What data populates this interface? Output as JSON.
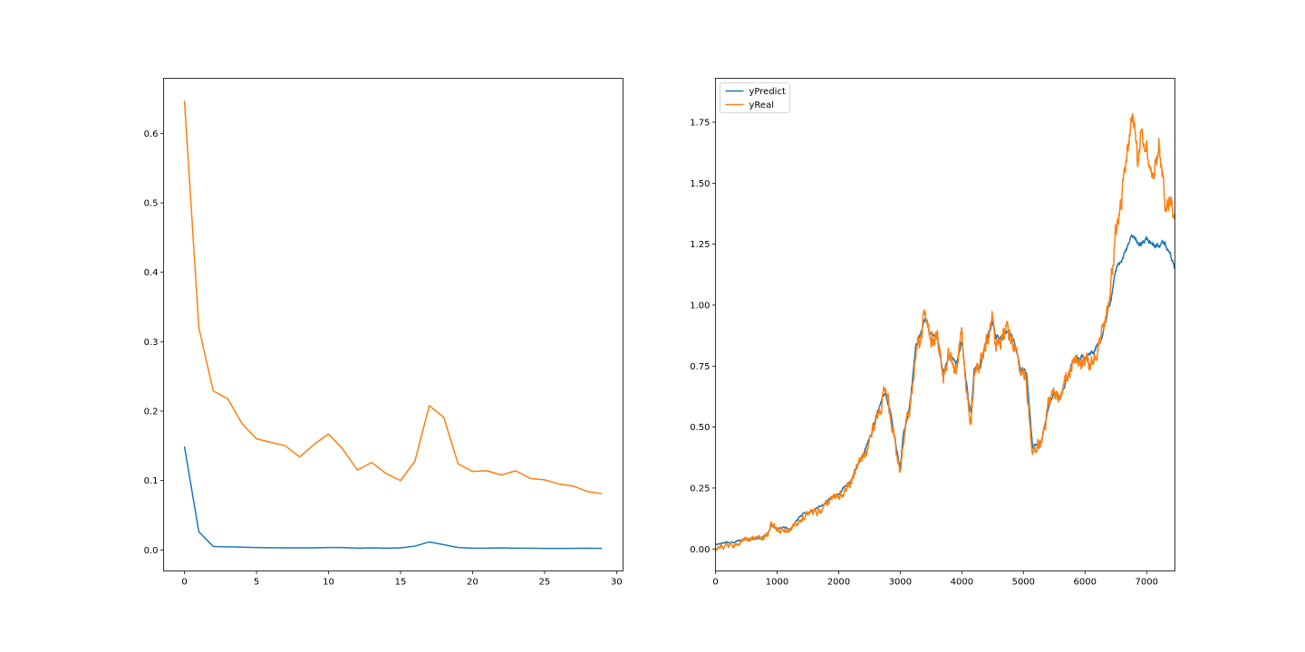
{
  "colors": {
    "series_blue": "#1f77b4",
    "series_orange": "#ff7f0e",
    "axes": "#000000",
    "background": "#ffffff"
  },
  "chart_data": [
    {
      "type": "line",
      "xlim": [
        -1.45,
        30.45
      ],
      "ylim": [
        -0.0303,
        0.6794
      ],
      "xticks": [
        0,
        5,
        10,
        15,
        20,
        25,
        30
      ],
      "yticks": [
        0.0,
        0.1,
        0.2,
        0.3,
        0.4,
        0.5,
        0.6
      ],
      "xtick_labels": [
        "0",
        "5",
        "10",
        "15",
        "20",
        "25",
        "30"
      ],
      "ytick_labels": [
        "0.0",
        "0.1",
        "0.2",
        "0.3",
        "0.4",
        "0.5",
        "0.6"
      ],
      "grid": false,
      "legend": false,
      "x": [
        0,
        1,
        2,
        3,
        4,
        5,
        6,
        7,
        8,
        9,
        10,
        11,
        12,
        13,
        14,
        15,
        16,
        17,
        18,
        19,
        20,
        21,
        22,
        23,
        24,
        25,
        26,
        27,
        28,
        29
      ],
      "series": [
        {
          "color": "#1f77b4",
          "values": [
            0.149,
            0.026,
            0.005,
            0.0045,
            0.004,
            0.0035,
            0.0032,
            0.003,
            0.003,
            0.003,
            0.0035,
            0.0035,
            0.0025,
            0.003,
            0.0025,
            0.003,
            0.0055,
            0.0115,
            0.0075,
            0.0035,
            0.0025,
            0.0025,
            0.003,
            0.0025,
            0.0025,
            0.0022,
            0.0022,
            0.0022,
            0.0025,
            0.0022
          ]
        },
        {
          "color": "#ff7f0e",
          "values": [
            0.647,
            0.32,
            0.229,
            0.218,
            0.182,
            0.16,
            0.155,
            0.15,
            0.134,
            0.152,
            0.167,
            0.145,
            0.115,
            0.126,
            0.11,
            0.1,
            0.128,
            0.208,
            0.191,
            0.124,
            0.113,
            0.114,
            0.108,
            0.114,
            0.103,
            0.101,
            0.095,
            0.092,
            0.084,
            0.081
          ]
        }
      ]
    },
    {
      "type": "line",
      "xlim": [
        0,
        7460
      ],
      "ylim": [
        -0.09,
        1.93
      ],
      "xticks": [
        0,
        1000,
        2000,
        3000,
        4000,
        5000,
        6000,
        7000
      ],
      "yticks": [
        0.0,
        0.25,
        0.5,
        0.75,
        1.0,
        1.25,
        1.5,
        1.75
      ],
      "xtick_labels": [
        "0",
        "1000",
        "2000",
        "3000",
        "4000",
        "5000",
        "6000",
        "7000"
      ],
      "ytick_labels": [
        "0.00",
        "0.25",
        "0.50",
        "0.75",
        "1.00",
        "1.25",
        "1.50",
        "1.75"
      ],
      "grid": false,
      "legend": "top-left",
      "anchors_x": [
        0,
        300,
        500,
        700,
        850,
        900,
        1000,
        1100,
        1200,
        1400,
        1600,
        1800,
        2000,
        2200,
        2300,
        2450,
        2550,
        2650,
        2750,
        2850,
        2950,
        3000,
        3050,
        3150,
        3250,
        3400,
        3500,
        3600,
        3700,
        3800,
        3900,
        4000,
        4100,
        4150,
        4200,
        4300,
        4400,
        4500,
        4550,
        4650,
        4750,
        4850,
        4950,
        5050,
        5150,
        5200,
        5300,
        5400,
        5500,
        5600,
        5700,
        5800,
        5900,
        6000,
        6100,
        6250,
        6400,
        6500,
        6600,
        6700,
        6750,
        6800,
        6850,
        6900,
        7000,
        7100,
        7200,
        7300,
        7400,
        7460
      ],
      "series": [
        {
          "name": "yPredict",
          "color": "#1f77b4",
          "values": [
            0.02,
            0.03,
            0.04,
            0.045,
            0.06,
            0.1,
            0.08,
            0.09,
            0.08,
            0.14,
            0.16,
            0.19,
            0.23,
            0.28,
            0.34,
            0.42,
            0.48,
            0.58,
            0.64,
            0.55,
            0.4,
            0.33,
            0.48,
            0.58,
            0.82,
            0.95,
            0.87,
            0.88,
            0.72,
            0.8,
            0.75,
            0.85,
            0.62,
            0.55,
            0.75,
            0.75,
            0.86,
            0.93,
            0.87,
            0.86,
            0.91,
            0.85,
            0.75,
            0.72,
            0.42,
            0.43,
            0.45,
            0.58,
            0.64,
            0.62,
            0.7,
            0.77,
            0.78,
            0.78,
            0.8,
            0.85,
            1.0,
            1.15,
            1.2,
            1.24,
            1.27,
            1.28,
            1.26,
            1.25,
            1.27,
            1.26,
            1.24,
            1.25,
            1.2,
            1.15
          ]
        },
        {
          "name": "yReal",
          "color": "#ff7f0e",
          "values": [
            0.0,
            0.02,
            0.035,
            0.04,
            0.06,
            0.1,
            0.075,
            0.085,
            0.075,
            0.13,
            0.15,
            0.18,
            0.22,
            0.27,
            0.33,
            0.4,
            0.47,
            0.56,
            0.66,
            0.52,
            0.38,
            0.33,
            0.46,
            0.57,
            0.82,
            0.97,
            0.86,
            0.9,
            0.7,
            0.81,
            0.74,
            0.86,
            0.6,
            0.52,
            0.74,
            0.76,
            0.86,
            0.95,
            0.86,
            0.87,
            0.93,
            0.84,
            0.74,
            0.7,
            0.38,
            0.42,
            0.44,
            0.57,
            0.63,
            0.61,
            0.69,
            0.78,
            0.77,
            0.76,
            0.79,
            0.84,
            1.05,
            1.3,
            1.45,
            1.65,
            1.78,
            1.75,
            1.6,
            1.7,
            1.62,
            1.55,
            1.65,
            1.45,
            1.4,
            1.35
          ]
        }
      ]
    }
  ]
}
